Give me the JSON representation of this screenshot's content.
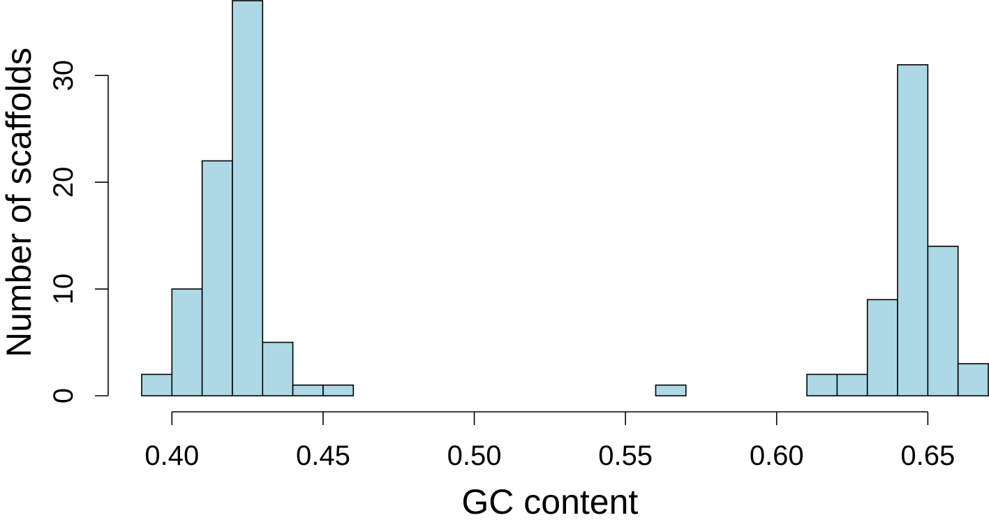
{
  "chart_data": {
    "type": "bar",
    "subtype": "histogram",
    "xlabel": "GC content",
    "ylabel": "Number of scaffolds",
    "xlim": [
      0.39,
      0.67
    ],
    "ylim": [
      0,
      37
    ],
    "bin_width": 0.01,
    "bin_starts": [
      0.39,
      0.4,
      0.41,
      0.42,
      0.43,
      0.44,
      0.45,
      0.46,
      0.47,
      0.48,
      0.49,
      0.5,
      0.51,
      0.52,
      0.53,
      0.54,
      0.55,
      0.56,
      0.57,
      0.58,
      0.59,
      0.6,
      0.61,
      0.62,
      0.63,
      0.64,
      0.65,
      0.66
    ],
    "values": [
      2,
      10,
      22,
      37,
      5,
      1,
      1,
      0,
      0,
      0,
      0,
      0,
      0,
      0,
      0,
      0,
      0,
      1,
      0,
      0,
      0,
      0,
      2,
      2,
      9,
      31,
      14,
      3
    ],
    "x_ticks": [
      0.4,
      0.45,
      0.5,
      0.55,
      0.6,
      0.65
    ],
    "x_tick_labels": [
      "0.40",
      "0.45",
      "0.50",
      "0.55",
      "0.60",
      "0.65"
    ],
    "y_ticks": [
      0,
      10,
      20,
      30
    ],
    "y_tick_labels": [
      "0",
      "10",
      "20",
      "30"
    ],
    "bar_fill": "#add8e6",
    "bar_stroke": "#000000",
    "grid": false,
    "legend": "none"
  }
}
